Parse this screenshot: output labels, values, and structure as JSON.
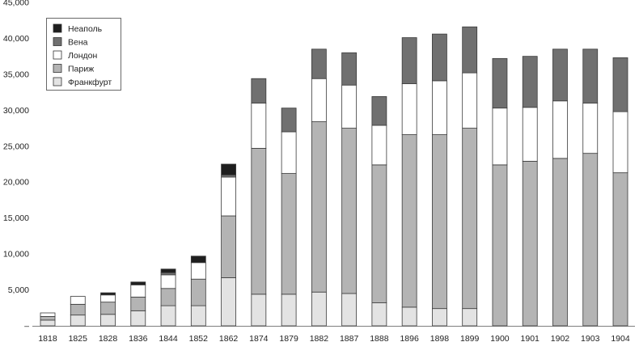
{
  "chart_data": {
    "type": "bar",
    "stacked": true,
    "categories": [
      "1818",
      "1825",
      "1828",
      "1836",
      "1844",
      "1852",
      "1862",
      "1874",
      "1879",
      "1882",
      "1887",
      "1888",
      "1896",
      "1898",
      "1899",
      "1900",
      "1901",
      "1902",
      "1903",
      "1904"
    ],
    "series": [
      {
        "name": "Франкфурт",
        "color": "#e3e3e3",
        "values": [
          800,
          1500,
          1600,
          2100,
          2800,
          2800,
          6700,
          4400,
          4400,
          4700,
          4500,
          3200,
          2600,
          2400,
          2400,
          0,
          0,
          0,
          0,
          0
        ]
      },
      {
        "name": "Париж",
        "color": "#b4b4b4",
        "values": [
          500,
          1500,
          1700,
          1900,
          2400,
          3700,
          8600,
          20300,
          16800,
          23700,
          23000,
          19200,
          24000,
          24200,
          25100,
          22400,
          22900,
          23300,
          24000,
          21300
        ]
      },
      {
        "name": "Лондон",
        "color": "#ffffff",
        "values": [
          500,
          1100,
          1000,
          1700,
          1900,
          2300,
          5400,
          6300,
          5800,
          6000,
          6000,
          5500,
          7100,
          7500,
          7700,
          7900,
          7500,
          8000,
          7000,
          8500
        ]
      },
      {
        "name": "Вена",
        "color": "#707070",
        "values": [
          0,
          0,
          0,
          0,
          300,
          0,
          300,
          3400,
          3300,
          4100,
          4500,
          4000,
          6400,
          6500,
          6400,
          6900,
          7100,
          7200,
          7500,
          7500
        ]
      },
      {
        "name": "Неаполь",
        "color": "#1e1e1e",
        "values": [
          0,
          0,
          300,
          400,
          500,
          900,
          1500,
          0,
          0,
          0,
          0,
          0,
          0,
          0,
          0,
          0,
          0,
          0,
          0,
          0
        ]
      }
    ],
    "y_ticks": [
      "–",
      "5,000",
      "10,000",
      "15,000",
      "20,000",
      "25,000",
      "30,000",
      "35,000",
      "40,000",
      "45,000"
    ],
    "ylim": [
      0,
      45000
    ],
    "grid": false,
    "legend": {
      "placement": "top-left",
      "entries": [
        "Неаполь",
        "Вена",
        "Лондон",
        "Париж",
        "Франкфурт"
      ]
    }
  }
}
